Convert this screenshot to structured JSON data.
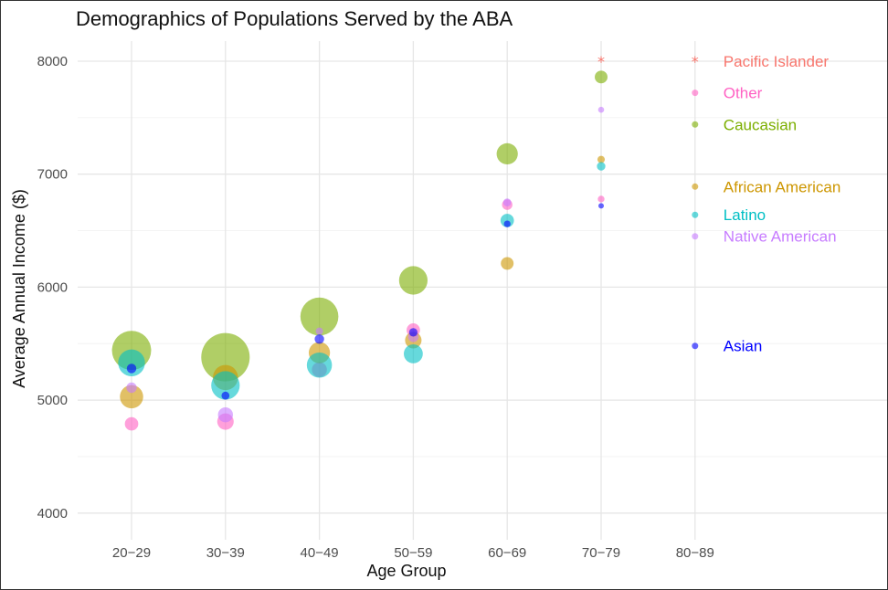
{
  "chart_data": {
    "type": "scatter",
    "title": "Demographics of Populations Served by the ABA",
    "xlabel": "Age Group",
    "ylabel": "Average Annual Income ($)",
    "categories": [
      "20−29",
      "30−39",
      "40−49",
      "50−59",
      "60−69",
      "70−79",
      "80−89"
    ],
    "yticks": [
      4000,
      5000,
      6000,
      7000,
      8000
    ],
    "ylim": [
      3870,
      8220
    ],
    "grid": true,
    "legend_position": "right, inside plot",
    "series": [
      {
        "name": "Pacific Islander",
        "color": "#F8766D",
        "marker": "asterisk",
        "points": [
          {
            "x": "70−79",
            "y": 8000,
            "size": 0.2
          }
        ]
      },
      {
        "name": "Other",
        "color": "#FF61C3",
        "marker": "circle",
        "points": [
          {
            "x": "20−29",
            "y": 4790,
            "size": 2
          },
          {
            "x": "30−39",
            "y": 4810,
            "size": 3
          },
          {
            "x": "40−49",
            "y": 5270,
            "size": 2.5
          },
          {
            "x": "50−59",
            "y": 5620,
            "size": 2
          },
          {
            "x": "60−69",
            "y": 6730,
            "size": 1.2
          },
          {
            "x": "70−79",
            "y": 6780,
            "size": 0.5
          }
        ]
      },
      {
        "name": "Caucasian",
        "color": "#7CAE00",
        "marker": "circle",
        "points": [
          {
            "x": "20−29",
            "y": 5440,
            "size": 17
          },
          {
            "x": "30−39",
            "y": 5380,
            "size": 26
          },
          {
            "x": "40−49",
            "y": 5740,
            "size": 16
          },
          {
            "x": "50−59",
            "y": 6060,
            "size": 9
          },
          {
            "x": "60−69",
            "y": 7180,
            "size": 5
          },
          {
            "x": "70−79",
            "y": 7860,
            "size": 1.8
          }
        ]
      },
      {
        "name": "African American",
        "color": "#CD9600",
        "marker": "circle",
        "points": [
          {
            "x": "20−29",
            "y": 5030,
            "size": 6
          },
          {
            "x": "30−39",
            "y": 5200,
            "size": 7
          },
          {
            "x": "40−49",
            "y": 5420,
            "size": 5
          },
          {
            "x": "50−59",
            "y": 5530,
            "size": 3
          },
          {
            "x": "60−69",
            "y": 6210,
            "size": 1.8
          },
          {
            "x": "70−79",
            "y": 7130,
            "size": 0.6
          }
        ]
      },
      {
        "name": "Latino",
        "color": "#00BFC4",
        "marker": "circle",
        "points": [
          {
            "x": "20−29",
            "y": 5330,
            "size": 8
          },
          {
            "x": "30−39",
            "y": 5130,
            "size": 9
          },
          {
            "x": "40−49",
            "y": 5310,
            "size": 7
          },
          {
            "x": "50−59",
            "y": 5410,
            "size": 4
          },
          {
            "x": "60−69",
            "y": 6590,
            "size": 2
          },
          {
            "x": "70−79",
            "y": 7070,
            "size": 0.8
          }
        ]
      },
      {
        "name": "Native American",
        "color": "#C77CFF",
        "marker": "circle",
        "points": [
          {
            "x": "20−29",
            "y": 5110,
            "size": 1.2
          },
          {
            "x": "30−39",
            "y": 4870,
            "size": 2.5
          },
          {
            "x": "40−49",
            "y": 5610,
            "size": 0.6
          },
          {
            "x": "50−59",
            "y": 5560,
            "size": 1.2
          },
          {
            "x": "60−69",
            "y": 6750,
            "size": 0.7
          },
          {
            "x": "70−79",
            "y": 7570,
            "size": 0.4
          }
        ]
      },
      {
        "name": "Asian",
        "color": "#0000FF",
        "marker": "circle",
        "points": [
          {
            "x": "20−29",
            "y": 5280,
            "size": 1
          },
          {
            "x": "30−39",
            "y": 5040,
            "size": 0.7
          },
          {
            "x": "40−49",
            "y": 5540,
            "size": 1
          },
          {
            "x": "50−59",
            "y": 5600,
            "size": 0.8
          },
          {
            "x": "60−69",
            "y": 6560,
            "size": 0.5
          },
          {
            "x": "70−79",
            "y": 6720,
            "size": 0.3
          }
        ]
      }
    ],
    "legend": [
      {
        "label": "Pacific Islander",
        "color": "#F8766D",
        "marker": "asterisk",
        "y": 8000
      },
      {
        "label": "Other",
        "color": "#FF61C3",
        "marker": "circle",
        "y": 7720
      },
      {
        "label": "Caucasian",
        "color": "#7CAE00",
        "marker": "circle",
        "y": 7440
      },
      {
        "label": "African American",
        "color": "#CD9600",
        "marker": "circle",
        "y": 6890
      },
      {
        "label": "Latino",
        "color": "#00BFC4",
        "marker": "circle",
        "y": 6640
      },
      {
        "label": "Native American",
        "color": "#C77CFF",
        "marker": "circle",
        "y": 6450
      },
      {
        "label": "Asian",
        "color": "#0000FF",
        "marker": "circle",
        "y": 5480
      }
    ],
    "legend_x": "80−89"
  }
}
